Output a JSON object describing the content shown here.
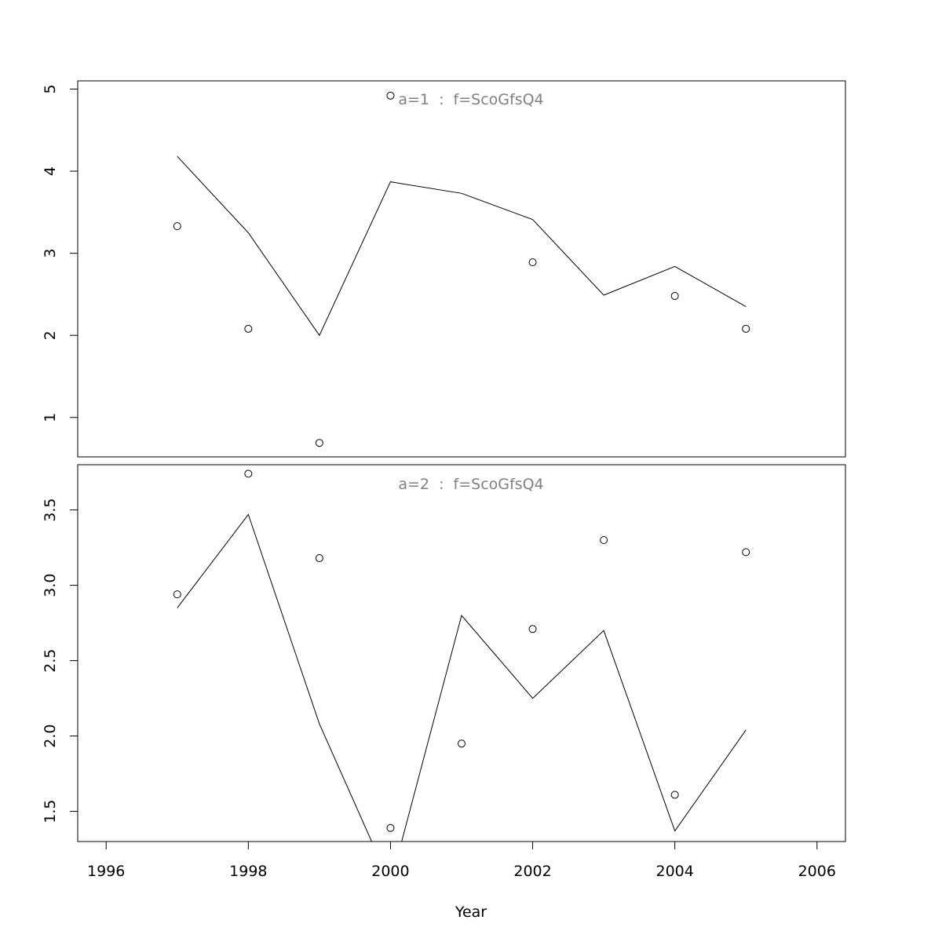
{
  "chart_data": [
    {
      "type": "line",
      "title": "a=1  :  f=ScoGfsQ4",
      "xlim": [
        1995.6,
        2006.4
      ],
      "ylim": [
        0.52,
        5.1
      ],
      "yticks": [
        1,
        2,
        3,
        4,
        5
      ],
      "ytick_labels": [
        "1",
        "2",
        "3",
        "4",
        "5"
      ],
      "points": [
        {
          "x": 1997,
          "y": 3.33
        },
        {
          "x": 1998,
          "y": 2.08
        },
        {
          "x": 1999,
          "y": 0.69
        },
        {
          "x": 2000,
          "y": 4.92
        },
        {
          "x": 2002,
          "y": 2.89
        },
        {
          "x": 2004,
          "y": 2.48
        },
        {
          "x": 2005,
          "y": 2.08
        }
      ],
      "line": [
        {
          "x": 1997,
          "y": 4.18
        },
        {
          "x": 1998,
          "y": 3.25
        },
        {
          "x": 1999,
          "y": 2.0
        },
        {
          "x": 2000,
          "y": 3.87
        },
        {
          "x": 2001,
          "y": 3.73
        },
        {
          "x": 2002,
          "y": 3.41
        },
        {
          "x": 2003,
          "y": 2.49
        },
        {
          "x": 2004,
          "y": 2.84
        },
        {
          "x": 2005,
          "y": 2.35
        }
      ]
    },
    {
      "type": "line",
      "title": "a=2  :  f=ScoGfsQ4",
      "xlim": [
        1995.6,
        2006.4
      ],
      "ylim": [
        1.3,
        3.8
      ],
      "yticks": [
        1.5,
        2.0,
        2.5,
        3.0,
        3.5
      ],
      "ytick_labels": [
        "1.5",
        "2.0",
        "2.5",
        "3.0",
        "3.5"
      ],
      "points": [
        {
          "x": 1997,
          "y": 2.94
        },
        {
          "x": 1998,
          "y": 3.74
        },
        {
          "x": 1999,
          "y": 3.18
        },
        {
          "x": 2000,
          "y": 1.39
        },
        {
          "x": 2001,
          "y": 1.95
        },
        {
          "x": 2002,
          "y": 2.71
        },
        {
          "x": 2003,
          "y": 3.3
        },
        {
          "x": 2004,
          "y": 1.61
        },
        {
          "x": 2005,
          "y": 3.22
        }
      ],
      "line": [
        {
          "x": 1997,
          "y": 2.85
        },
        {
          "x": 1998,
          "y": 3.47
        },
        {
          "x": 1999,
          "y": 2.08
        },
        {
          "x": 2000,
          "y": 1.02
        },
        {
          "x": 2001,
          "y": 2.8
        },
        {
          "x": 2002,
          "y": 2.25
        },
        {
          "x": 2003,
          "y": 2.7
        },
        {
          "x": 2004,
          "y": 1.37
        },
        {
          "x": 2005,
          "y": 2.04
        }
      ]
    }
  ],
  "x_axis": {
    "label": "Year",
    "ticks": [
      1996,
      1998,
      2000,
      2002,
      2004,
      2006
    ],
    "tick_labels": [
      "1996",
      "1998",
      "2000",
      "2002",
      "2004",
      "2006"
    ]
  },
  "colors": {
    "line": "#000000",
    "points": "#000000",
    "frame": "#000000",
    "title": "#808080"
  }
}
